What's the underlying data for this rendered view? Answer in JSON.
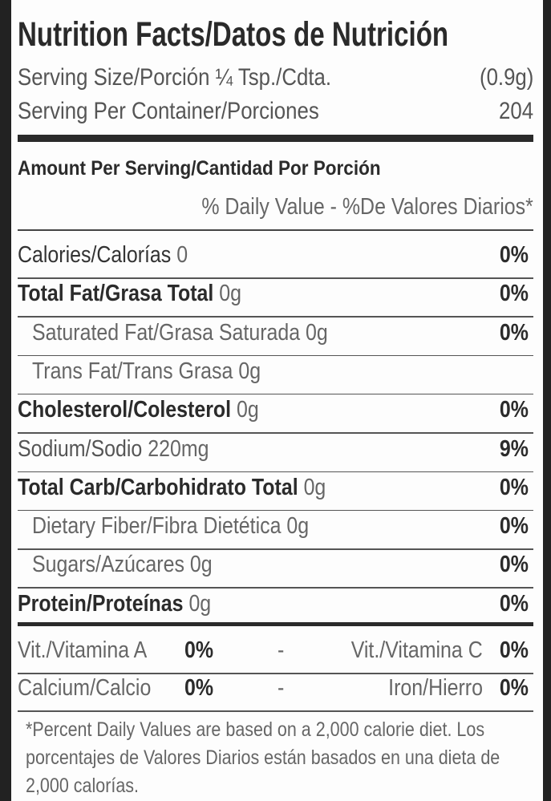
{
  "title": "Nutrition Facts/Datos de Nutrición",
  "serving_size": {
    "label": "Serving Size/Porción ¼ Tsp./Cdta.",
    "value": "(0.9g)"
  },
  "servings_per_container": {
    "label": "Serving Per Container/Porciones",
    "value": "204"
  },
  "amount_header": "Amount Per Serving/Cantidad Por Porción",
  "daily_value_header": "% Daily Value - %De Valores Diarios*",
  "nutrients": [
    {
      "name": "Calories/Calorías",
      "amount": "0",
      "dv": "0%"
    },
    {
      "name": "Total Fat/Grasa Total",
      "amount": "0g",
      "dv": "0%"
    },
    {
      "name": "Saturated Fat/Grasa Saturada",
      "amount": "0g",
      "dv": "0%"
    },
    {
      "name": "Trans Fat/Trans Grasa",
      "amount": "0g"
    },
    {
      "name": "Cholesterol/Colesterol",
      "amount": "0g",
      "dv": "0%"
    },
    {
      "name": "Sodium/Sodio",
      "amount": "220mg",
      "dv": "9%"
    },
    {
      "name": "Total Carb/Carbohidrato Total",
      "amount": "0g",
      "dv": "0%"
    },
    {
      "name": "Dietary Fiber/Fibra Dietética",
      "amount": "0g",
      "dv": "0%"
    },
    {
      "name": "Sugars/Azúcares",
      "amount": "0g",
      "dv": "0%"
    },
    {
      "name": "Protein/Proteínas",
      "amount": "0g",
      "dv": "0%"
    }
  ],
  "vitamins": [
    {
      "left": {
        "name": "Vit./Vitamina A",
        "dv": "0%"
      },
      "separator": "-",
      "right": {
        "name": "Vit./Vitamina C",
        "dv": "0%"
      }
    },
    {
      "left": {
        "name": "Calcium/Calcio",
        "dv": "0%"
      },
      "separator": "-",
      "right": {
        "name": "Iron/Hierro",
        "dv": "0%"
      }
    }
  ],
  "footnote": "*Percent Daily Values are based on a 2,000 calorie diet. Los porcentajes de Valores Diarios están basados en una dieta de 2,000 calorías."
}
